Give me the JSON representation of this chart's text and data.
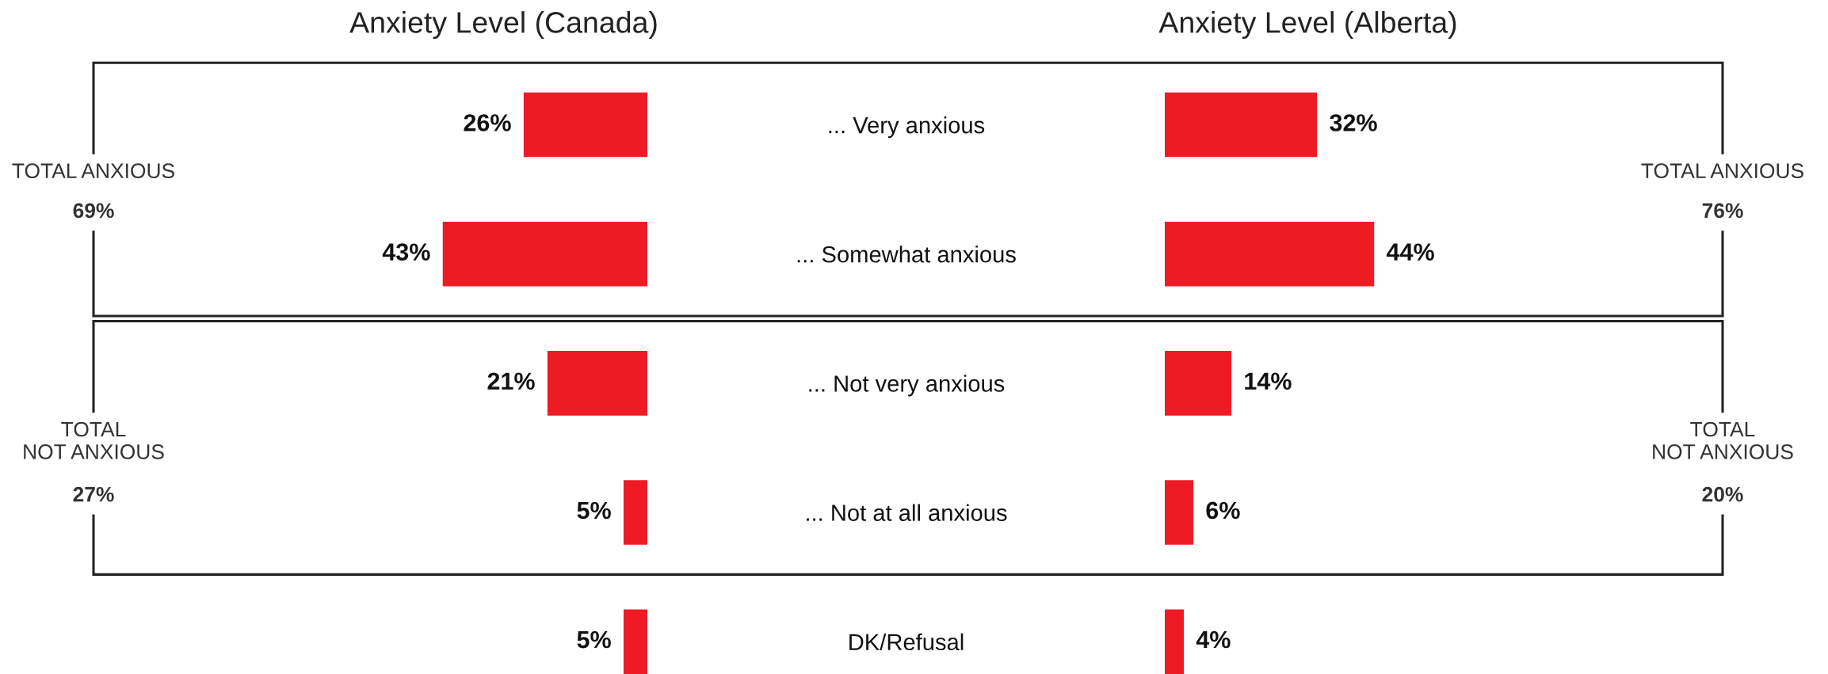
{
  "chart_data": [
    {
      "type": "bar",
      "orientation": "horizontal",
      "title": "Anxiety Level (Canada)",
      "categories": [
        "... Very anxious",
        "... Somewhat anxious",
        "... Not very anxious",
        "... Not at all anxious",
        "DK/Refusal"
      ],
      "values": [
        26,
        43,
        21,
        5,
        5
      ],
      "color": "#ed1c24",
      "value_labels": [
        "26%",
        "43%",
        "21%",
        "5%",
        "5%"
      ],
      "tick_labels": "y",
      "annotations": [
        "TOTAL ANXIOUS",
        "69%",
        "TOTAL\nNOT ANXIOUS",
        "27%"
      ]
    },
    {
      "type": "bar",
      "orientation": "horizontal",
      "title": "Anxiety Level (Alberta)",
      "categories": [
        null,
        null,
        null,
        null,
        null
      ],
      "values": [
        32,
        44,
        14,
        6,
        4
      ],
      "color": "#ed1c24",
      "value_labels": [
        "32%",
        "44%",
        "14%",
        "6%",
        "4%"
      ],
      "tick_labels": false,
      "annotations": [
        "TOTAL ANXIOUS",
        "76%",
        "TOTAL\nNOT ANXIOUS",
        "20%"
      ]
    }
  ]
}
